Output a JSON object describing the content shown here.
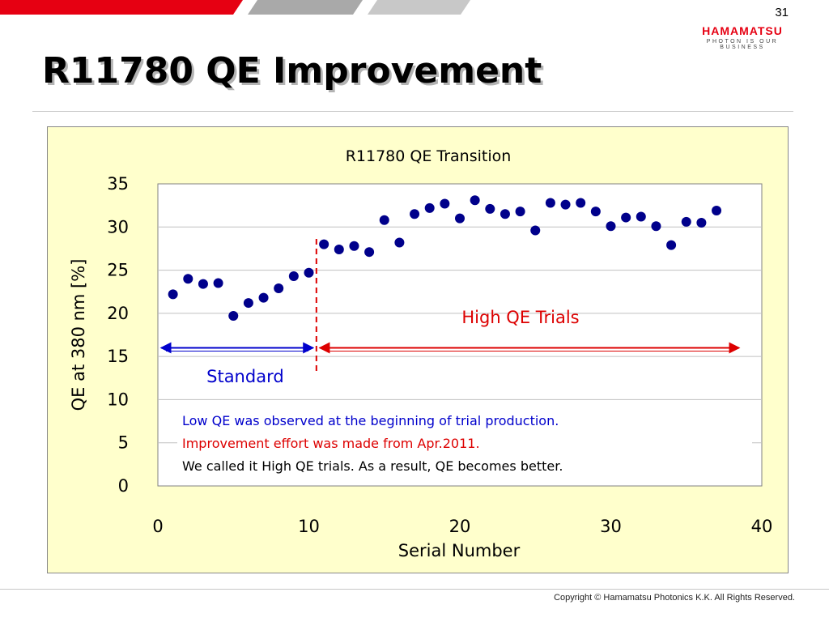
{
  "slide": {
    "page_number": "31",
    "title": "R11780 QE Improvement",
    "copyright": "Copyright © Hamamatsu Photonics K.K. All Rights Reserved."
  },
  "logo": {
    "name": "HAMAMATSU",
    "tagline": "PHOTON IS OUR BUSINESS"
  },
  "colors": {
    "brand_red": "#e60012",
    "panel_bg": "#ffffcc",
    "point": "#00008b",
    "standard_blue": "#0000cc",
    "trial_red": "#dd0000"
  },
  "chart_data": {
    "type": "scatter",
    "title": "R11780 QE Transition",
    "xlabel": "Serial Number",
    "ylabel": "QE at 380 nm [%]",
    "xlim": [
      0,
      40
    ],
    "ylim": [
      0,
      35
    ],
    "x_ticks": [
      "0",
      "10",
      "20",
      "30",
      "40"
    ],
    "y_ticks": [
      "0",
      "5",
      "10",
      "15",
      "20",
      "25",
      "30",
      "35"
    ],
    "grid": "horizontal",
    "legend": "none",
    "points": [
      {
        "x": 1,
        "y": 22.2
      },
      {
        "x": 2,
        "y": 24.0
      },
      {
        "x": 3,
        "y": 23.4
      },
      {
        "x": 4,
        "y": 23.5
      },
      {
        "x": 5,
        "y": 19.7
      },
      {
        "x": 6,
        "y": 21.2
      },
      {
        "x": 7,
        "y": 21.8
      },
      {
        "x": 8,
        "y": 22.9
      },
      {
        "x": 9,
        "y": 24.3
      },
      {
        "x": 10,
        "y": 24.7
      },
      {
        "x": 11,
        "y": 28.0
      },
      {
        "x": 12,
        "y": 27.4
      },
      {
        "x": 13,
        "y": 27.8
      },
      {
        "x": 14,
        "y": 27.1
      },
      {
        "x": 15,
        "y": 30.8
      },
      {
        "x": 16,
        "y": 28.2
      },
      {
        "x": 17,
        "y": 31.5
      },
      {
        "x": 18,
        "y": 32.2
      },
      {
        "x": 19,
        "y": 32.7
      },
      {
        "x": 20,
        "y": 31.0
      },
      {
        "x": 21,
        "y": 33.1
      },
      {
        "x": 22,
        "y": 32.1
      },
      {
        "x": 23,
        "y": 31.5
      },
      {
        "x": 24,
        "y": 31.8
      },
      {
        "x": 25,
        "y": 29.6
      },
      {
        "x": 26,
        "y": 32.8
      },
      {
        "x": 27,
        "y": 32.6
      },
      {
        "x": 28,
        "y": 32.8
      },
      {
        "x": 29,
        "y": 31.8
      },
      {
        "x": 30,
        "y": 30.1
      },
      {
        "x": 31,
        "y": 31.1
      },
      {
        "x": 32,
        "y": 31.2
      },
      {
        "x": 33,
        "y": 30.1
      },
      {
        "x": 34,
        "y": 27.9
      },
      {
        "x": 35,
        "y": 30.6
      },
      {
        "x": 36,
        "y": 30.5
      },
      {
        "x": 37,
        "y": 31.9
      }
    ],
    "annotations": {
      "divider_x": 10.5,
      "standard": {
        "label": "Standard",
        "x_start": 0,
        "x_end": 10.5,
        "y": 16
      },
      "high_qe": {
        "label": "High QE Trials",
        "x_start": 10.5,
        "x_end": 38.5,
        "y": 16
      },
      "notes": [
        {
          "text": "Low QE was observed at the beginning of trial production.",
          "color": "#0000cc"
        },
        {
          "text": "Improvement effort was made from Apr.2011.",
          "color": "#dd0000"
        },
        {
          "text": "We called it High QE trials. As a result, QE becomes better.",
          "color": "#000000"
        }
      ]
    }
  }
}
